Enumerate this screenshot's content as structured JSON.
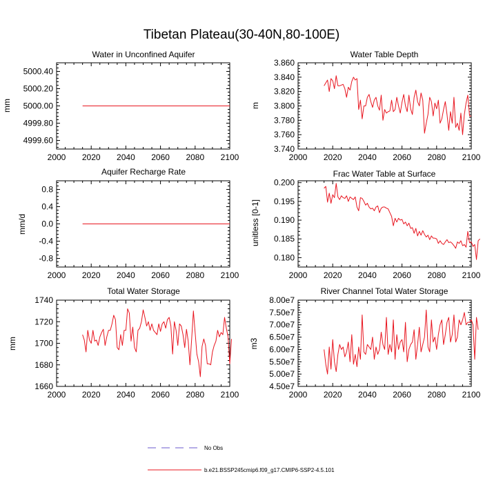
{
  "figure": {
    "title": "Tibetan Plateau(30-40N,80-100E)",
    "line_color": "#e8141e",
    "obs_color": "#6a5acd",
    "legend": {
      "obs_label": "No Obs",
      "model_label": "b.e21.BSSP245cmip6.f09_g17.CMIP6-SSP2-4.5.101"
    }
  },
  "chart_data": [
    {
      "id": "p1",
      "type": "line",
      "title": "Water in Unconfined Aquifer",
      "ylabel": "mm",
      "xlabel": "",
      "xlim": [
        2000,
        2100
      ],
      "ylim": [
        4999.5,
        5000.5
      ],
      "xticks": [
        2000,
        2020,
        2040,
        2060,
        2080,
        2100
      ],
      "yticks": [
        4999.6,
        4999.8,
        5000.0,
        5000.2,
        5000.4
      ],
      "ytick_labels": [
        "4999.60",
        "4999.80",
        "5000.00",
        "5000.20",
        "5000.40"
      ],
      "series": [
        {
          "name": "b.e21.BSSP245cmip6.f09_g17.CMIP6-SSP2-4.5.101",
          "x_start": 2015,
          "x_end": 2100,
          "constant": 5000.0
        }
      ]
    },
    {
      "id": "p2",
      "type": "line",
      "title": "Water Table Depth",
      "ylabel": "m",
      "xlabel": "",
      "xlim": [
        2000,
        2100
      ],
      "ylim": [
        3.74,
        3.86
      ],
      "xticks": [
        2000,
        2020,
        2040,
        2060,
        2080,
        2100
      ],
      "yticks": [
        3.74,
        3.76,
        3.78,
        3.8,
        3.82,
        3.84,
        3.86
      ],
      "ytick_labels": [
        "3.740",
        "3.760",
        "3.780",
        "3.800",
        "3.820",
        "3.840",
        "3.860"
      ],
      "series": [
        {
          "name": "b.e21.BSSP245cmip6.f09_g17.CMIP6-SSP2-4.5.101",
          "x_start": 2015,
          "values": [
            3.828,
            3.832,
            3.836,
            3.82,
            3.838,
            3.835,
            3.824,
            3.842,
            3.828,
            3.828,
            3.829,
            3.83,
            3.824,
            3.812,
            3.826,
            3.822,
            3.834,
            3.84,
            3.836,
            3.838,
            3.795,
            3.808,
            3.782,
            3.8,
            3.8,
            3.812,
            3.816,
            3.806,
            3.798,
            3.808,
            3.812,
            3.8,
            3.794,
            3.815,
            3.78,
            3.795,
            3.79,
            3.792,
            3.793,
            3.808,
            3.792,
            3.795,
            3.812,
            3.8,
            3.79,
            3.805,
            3.816,
            3.8,
            3.792,
            3.815,
            3.796,
            3.788,
            3.812,
            3.822,
            3.806,
            3.8,
            3.818,
            3.808,
            3.762,
            3.776,
            3.788,
            3.812,
            3.806,
            3.786,
            3.804,
            3.796,
            3.808,
            3.776,
            3.782,
            3.795,
            3.806,
            3.788,
            3.766,
            3.792,
            3.776,
            3.812,
            3.77,
            3.776,
            3.766,
            3.79,
            3.76,
            3.788,
            3.804,
            3.815,
            3.786,
            3.786
          ]
        }
      ]
    },
    {
      "id": "p3",
      "type": "line",
      "title": "Aquifer Recharge Rate",
      "ylabel": "mm/d",
      "xlabel": "",
      "xlim": [
        2000,
        2100
      ],
      "ylim": [
        -1.0,
        1.0
      ],
      "xticks": [
        2000,
        2020,
        2040,
        2060,
        2080,
        2100
      ],
      "yticks": [
        -0.8,
        -0.4,
        0.0,
        0.4,
        0.8
      ],
      "ytick_labels": [
        "-0.8",
        "-0.4",
        "0.0",
        "0.4",
        "0.8"
      ],
      "series": [
        {
          "name": "b.e21.BSSP245cmip6.f09_g17.CMIP6-SSP2-4.5.101",
          "x_start": 2015,
          "x_end": 2100,
          "constant": 0.0
        }
      ]
    },
    {
      "id": "p4",
      "type": "line",
      "title": "Frac Water Table at Surface",
      "ylabel": "unitless [0-1]",
      "xlabel": "",
      "xlim": [
        2000,
        2100
      ],
      "ylim": [
        0.1775,
        0.2005
      ],
      "xticks": [
        2000,
        2020,
        2040,
        2060,
        2080,
        2100
      ],
      "yticks": [
        0.18,
        0.185,
        0.19,
        0.195,
        0.2
      ],
      "ytick_labels": [
        "0.180",
        "0.185",
        "0.190",
        "0.195",
        "0.200"
      ],
      "series": [
        {
          "name": "b.e21.BSSP245cmip6.f09_g17.CMIP6-SSP2-4.5.101",
          "x_start": 2015,
          "values": [
            0.1985,
            0.199,
            0.1948,
            0.1972,
            0.1945,
            0.1968,
            0.196,
            0.1998,
            0.1962,
            0.1955,
            0.1965,
            0.196,
            0.1958,
            0.1965,
            0.195,
            0.1962,
            0.1958,
            0.1955,
            0.1962,
            0.1935,
            0.1925,
            0.196,
            0.1958,
            0.195,
            0.194,
            0.1945,
            0.1935,
            0.193,
            0.1932,
            0.1925,
            0.1935,
            0.1938,
            0.192,
            0.1932,
            0.1935,
            0.1935,
            0.1932,
            0.193,
            0.192,
            0.191,
            0.1885,
            0.1905,
            0.1895,
            0.1905,
            0.19,
            0.1902,
            0.189,
            0.1895,
            0.1885,
            0.1892,
            0.1878,
            0.188,
            0.1865,
            0.1878,
            0.1858,
            0.187,
            0.186,
            0.1872,
            0.1862,
            0.1855,
            0.186,
            0.1848,
            0.1858,
            0.1852,
            0.1852,
            0.185,
            0.1838,
            0.1845,
            0.1838,
            0.1835,
            0.1842,
            0.1848,
            0.184,
            0.1842,
            0.1838,
            0.1832,
            0.1825,
            0.1842,
            0.1838,
            0.1845,
            0.1832,
            0.1835,
            0.1828,
            0.187,
            0.184,
            0.1842,
            0.183,
            0.1835,
            0.1795,
            0.1845,
            0.185
          ]
        }
      ]
    },
    {
      "id": "p5",
      "type": "line",
      "title": "Total Water Storage",
      "ylabel": "mm",
      "xlabel": "",
      "xlim": [
        2000,
        2100
      ],
      "ylim": [
        1660,
        1740
      ],
      "xticks": [
        2000,
        2020,
        2040,
        2060,
        2080,
        2100
      ],
      "yticks": [
        1660,
        1680,
        1700,
        1720,
        1740
      ],
      "ytick_labels": [
        "1660",
        "1680",
        "1700",
        "1720",
        "1740"
      ],
      "series": [
        {
          "name": "b.e21.BSSP245cmip6.f09_g17.CMIP6-SSP2-4.5.101",
          "x_start": 2015,
          "values": [
            1708,
            1703,
            1692,
            1712,
            1703,
            1700,
            1712,
            1702,
            1703,
            1698,
            1706,
            1710,
            1713,
            1698,
            1706,
            1712,
            1712,
            1718,
            1726,
            1722,
            1696,
            1694,
            1708,
            1698,
            1712,
            1712,
            1732,
            1728,
            1702,
            1715,
            1696,
            1692,
            1712,
            1714,
            1720,
            1731,
            1724,
            1716,
            1720,
            1712,
            1718,
            1712,
            1710,
            1708,
            1718,
            1711,
            1718,
            1720,
            1714,
            1722,
            1724,
            1716,
            1690,
            1720,
            1712,
            1698,
            1718,
            1716,
            1708,
            1696,
            1713,
            1702,
            1680,
            1704,
            1730,
            1710,
            1690,
            1683,
            1669,
            1697,
            1704,
            1698,
            1681,
            1681,
            1680,
            1692,
            1698,
            1702,
            1712,
            1706,
            1710,
            1708,
            1724,
            1714,
            1706,
            1681,
            1704
          ]
        }
      ]
    },
    {
      "id": "p6",
      "type": "line",
      "title": "River Channel Total Water Storage",
      "ylabel": "m3",
      "xlabel": "",
      "xlim": [
        2000,
        2100
      ],
      "ylim": [
        45000000,
        80000000
      ],
      "xticks": [
        2000,
        2020,
        2040,
        2060,
        2080,
        2100
      ],
      "yticks": [
        45000000,
        50000000,
        55000000,
        60000000,
        65000000,
        70000000,
        75000000,
        80000000
      ],
      "ytick_labels": [
        "4.50e7",
        "5.00e7",
        "5.50e7",
        "6.00e7",
        "6.50e7",
        "7.00e7",
        "7.50e7",
        "8.00e7"
      ],
      "series": [
        {
          "name": "b.e21.BSSP245cmip6.f09_g17.CMIP6-SSP2-4.5.101",
          "x_start": 2015,
          "values": [
            60000000,
            54000000,
            50000000,
            61000000,
            52000000,
            64000000,
            55000000,
            51000000,
            58000000,
            62000000,
            60000000,
            61000000,
            57000000,
            59000000,
            63000000,
            55000000,
            66000000,
            54000000,
            58000000,
            53000000,
            61000000,
            56000000,
            74000000,
            59000000,
            58000000,
            62000000,
            61000000,
            60000000,
            65000000,
            56000000,
            61000000,
            58000000,
            60000000,
            67000000,
            62000000,
            60000000,
            73000000,
            58000000,
            62000000,
            59000000,
            72000000,
            56000000,
            66000000,
            60000000,
            63000000,
            64000000,
            59000000,
            71000000,
            55000000,
            60000000,
            62000000,
            63000000,
            68000000,
            56000000,
            62000000,
            69000000,
            59000000,
            62000000,
            65000000,
            76000000,
            61000000,
            59000000,
            72000000,
            63000000,
            65000000,
            60000000,
            66000000,
            70000000,
            72000000,
            62000000,
            66000000,
            71000000,
            73000000,
            63000000,
            66000000,
            74000000,
            63000000,
            65000000,
            72000000,
            70000000,
            72000000,
            75000000,
            70000000,
            71000000,
            71000000,
            72000000,
            70000000,
            56000000,
            73000000,
            68000000
          ]
        }
      ]
    }
  ]
}
